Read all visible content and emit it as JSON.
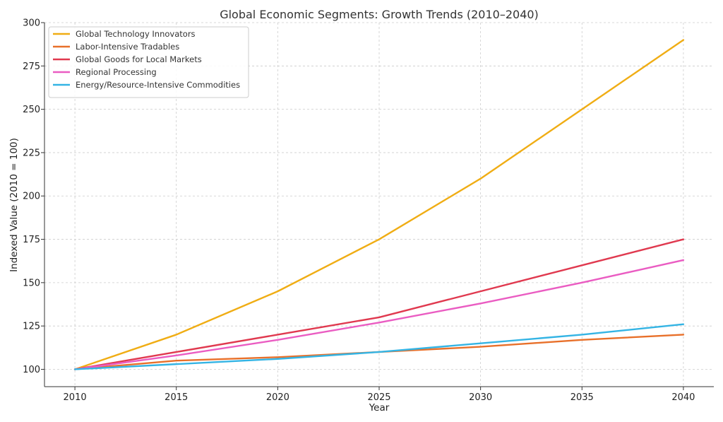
{
  "chart_data": {
    "type": "line",
    "title": "Global Economic Segments: Growth Trends (2010–2040)",
    "xlabel": "Year",
    "ylabel": "Indexed Value (2010 = 100)",
    "x": [
      2010,
      2015,
      2020,
      2025,
      2030,
      2035,
      2040
    ],
    "xlim": [
      2008.5,
      2041.5
    ],
    "ylim": [
      90,
      300
    ],
    "xticks": [
      2010,
      2015,
      2020,
      2025,
      2030,
      2035,
      2040
    ],
    "yticks": [
      100,
      125,
      150,
      175,
      200,
      225,
      250,
      275,
      300
    ],
    "grid": true,
    "legend_position": "top-left",
    "series": [
      {
        "name": "Global Technology Innovators",
        "color": "#f0ad14",
        "values": [
          100,
          120,
          145,
          175,
          210,
          250,
          290
        ]
      },
      {
        "name": "Labor-Intensive Tradables",
        "color": "#e8702a",
        "values": [
          100,
          105,
          107,
          110,
          113,
          117,
          120
        ]
      },
      {
        "name": "Global Goods for Local Markets",
        "color": "#e0394f",
        "values": [
          100,
          110,
          120,
          130,
          145,
          160,
          175
        ]
      },
      {
        "name": "Regional Processing",
        "color": "#ea5cc2",
        "values": [
          100,
          108,
          117,
          127,
          138,
          150,
          163
        ]
      },
      {
        "name": "Energy/Resource-Intensive Commodities",
        "color": "#34b4e4",
        "values": [
          100,
          103,
          106,
          110,
          115,
          120,
          126
        ]
      }
    ]
  }
}
